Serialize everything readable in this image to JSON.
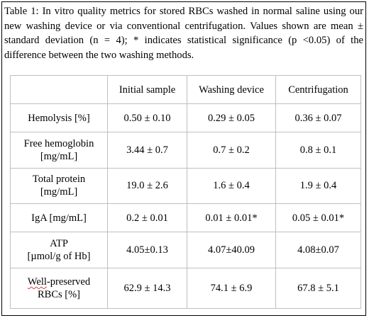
{
  "caption": "Table 1: In vitro quality metrics for stored RBCs washed in normal saline using our new washing device or via conventional centrifugation.  Values shown are mean ± standard deviation (n = 4); * indicates statistical significance (p <0.05) of the difference between the two washing methods.",
  "table": {
    "headers": [
      "",
      "Initial sample",
      "Washing device",
      "Centrifugation"
    ],
    "rows": [
      {
        "metric_line1": "Hemolysis [%]",
        "metric_line2": "",
        "values": [
          "0.50 ± 0.10",
          "0.29 ± 0.05",
          "0.36 ± 0.07"
        ]
      },
      {
        "metric_line1": "Free hemoglobin",
        "metric_line2": "[mg/mL]",
        "values": [
          "3.44 ± 0.7",
          "0.7 ± 0.2",
          "0.8 ± 0.1"
        ]
      },
      {
        "metric_line1": "Total protein",
        "metric_line2": "[mg/mL]",
        "values": [
          "19.0 ± 2.6",
          "1.6 ± 0.4",
          "1.9 ± 0.4"
        ]
      },
      {
        "metric_line1": "IgA [mg/mL]",
        "metric_line2": "",
        "values": [
          "0.2 ± 0.01",
          "0.01 ± 0.01*",
          "0.05 ± 0.01*"
        ]
      },
      {
        "metric_line1": "ATP",
        "metric_line2": "[µmol/g of Hb]",
        "values": [
          "4.05±0.13",
          "4.07±40.09",
          "4.08±0.07"
        ]
      },
      {
        "metric_line1_a": "Well",
        "metric_line1_b": "-preserved",
        "metric_line2": "RBCs [%]",
        "values": [
          "62.9 ± 14.3",
          "74.1 ± 6.9",
          "67.8 ± 5.1"
        ]
      }
    ]
  }
}
